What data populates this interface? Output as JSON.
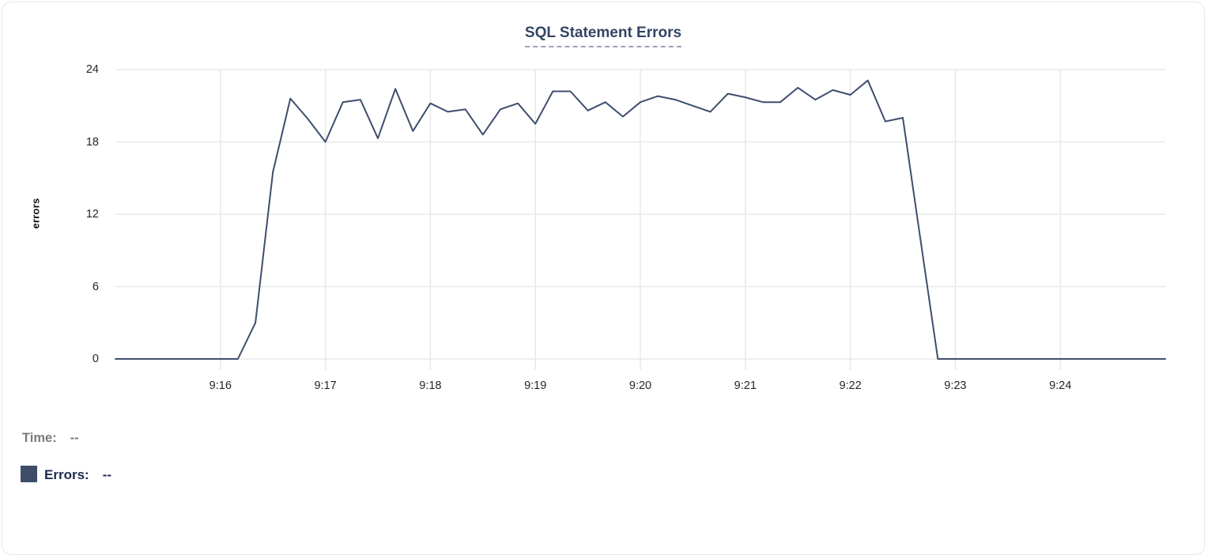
{
  "theme": {
    "title": "#344563",
    "underline": "#9aa3b5",
    "card_border": "#e8e8e8",
    "grid": "#e9e9e9",
    "tick_text": "#262626",
    "gray_text": "#7b7b7b",
    "navy_text": "#1d2b50",
    "swatch": "#3e4c68",
    "line": "#3f4e6e"
  },
  "tooltip": {
    "time_label": "Time:",
    "time_value": "--",
    "errors_label": "Errors:",
    "errors_value": "--"
  },
  "chart_data": {
    "type": "line",
    "title": "SQL Statement Errors",
    "xlabel": "",
    "ylabel": "errors",
    "ylim": [
      0,
      24
    ],
    "yticks": [
      0,
      6,
      12,
      18,
      24
    ],
    "grid": true,
    "legend_position": "none",
    "x_range_minutes": [
      0,
      10
    ],
    "sample_interval_seconds": 10,
    "xticks": [
      {
        "label": "9:16",
        "minute": 1
      },
      {
        "label": "9:17",
        "minute": 2
      },
      {
        "label": "9:18",
        "minute": 3
      },
      {
        "label": "9:19",
        "minute": 4
      },
      {
        "label": "9:20",
        "minute": 5
      },
      {
        "label": "9:21",
        "minute": 6
      },
      {
        "label": "9:22",
        "minute": 7
      },
      {
        "label": "9:23",
        "minute": 8
      },
      {
        "label": "9:24",
        "minute": 9
      }
    ],
    "series": [
      {
        "name": "Errors",
        "color": "#3f4e6e",
        "values": [
          0,
          0,
          0,
          0,
          0,
          0,
          0,
          0,
          3,
          15.5,
          21.6,
          19.9,
          18,
          21.3,
          21.5,
          18.3,
          22.4,
          18.9,
          21.2,
          20.5,
          20.7,
          18.6,
          20.7,
          21.2,
          19.5,
          22.2,
          22.2,
          20.6,
          21.3,
          20.1,
          21.3,
          21.8,
          21.5,
          21.0,
          20.5,
          22.0,
          21.7,
          21.3,
          21.3,
          22.5,
          21.5,
          22.3,
          21.9,
          23.1,
          19.7,
          20.0,
          10,
          0,
          0,
          0,
          0,
          0,
          0,
          0,
          0,
          0,
          0,
          0,
          0,
          0,
          0
        ]
      }
    ]
  }
}
